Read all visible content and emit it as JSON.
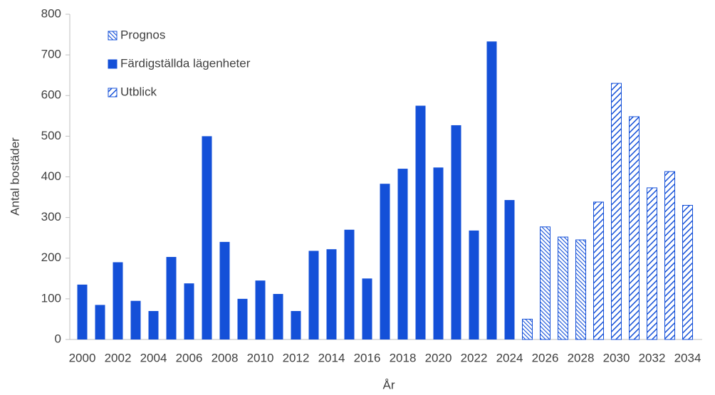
{
  "chart_data": {
    "type": "bar",
    "x_label": "År",
    "y_label": "Antal bostäder",
    "categories": [
      "2000",
      null,
      "2002",
      null,
      "2004",
      null,
      "2006",
      null,
      "2008",
      null,
      "2010",
      null,
      "2012",
      null,
      "2014",
      null,
      "2016",
      null,
      "2018",
      null,
      "2020",
      null,
      "2022",
      null,
      "2024",
      null,
      "2026",
      null,
      "2028",
      null,
      "2030",
      null,
      "2032",
      null,
      "2034"
    ],
    "series": [
      {
        "name": "Prognos",
        "color": "#1450d8",
        "pattern": "backslash",
        "values": [
          null,
          null,
          null,
          null,
          null,
          null,
          null,
          null,
          null,
          null,
          null,
          null,
          null,
          null,
          null,
          null,
          null,
          null,
          null,
          null,
          null,
          null,
          null,
          null,
          null,
          50,
          277,
          252,
          245,
          null,
          null,
          null,
          null,
          null,
          null
        ]
      },
      {
        "name": "Färdigställda lägenheter",
        "color": "#1450d8",
        "pattern": "solid",
        "values": [
          135,
          85,
          190,
          95,
          70,
          203,
          138,
          500,
          240,
          100,
          145,
          112,
          70,
          218,
          222,
          270,
          150,
          383,
          420,
          575,
          423,
          527,
          268,
          733,
          343,
          null,
          null,
          null,
          null,
          null,
          null,
          null,
          null,
          null,
          null
        ]
      },
      {
        "name": "Utblick",
        "color": "#1450d8",
        "pattern": "slash",
        "values": [
          null,
          null,
          null,
          null,
          null,
          null,
          null,
          null,
          null,
          null,
          null,
          null,
          null,
          null,
          null,
          null,
          null,
          null,
          null,
          null,
          null,
          null,
          null,
          null,
          null,
          null,
          null,
          null,
          null,
          338,
          630,
          548,
          373,
          413,
          330
        ]
      }
    ],
    "ylim": [
      0,
      800
    ],
    "yticks": [
      0,
      100,
      200,
      300,
      400,
      500,
      600,
      700,
      800
    ],
    "legend": "upper left",
    "grid": false
  }
}
